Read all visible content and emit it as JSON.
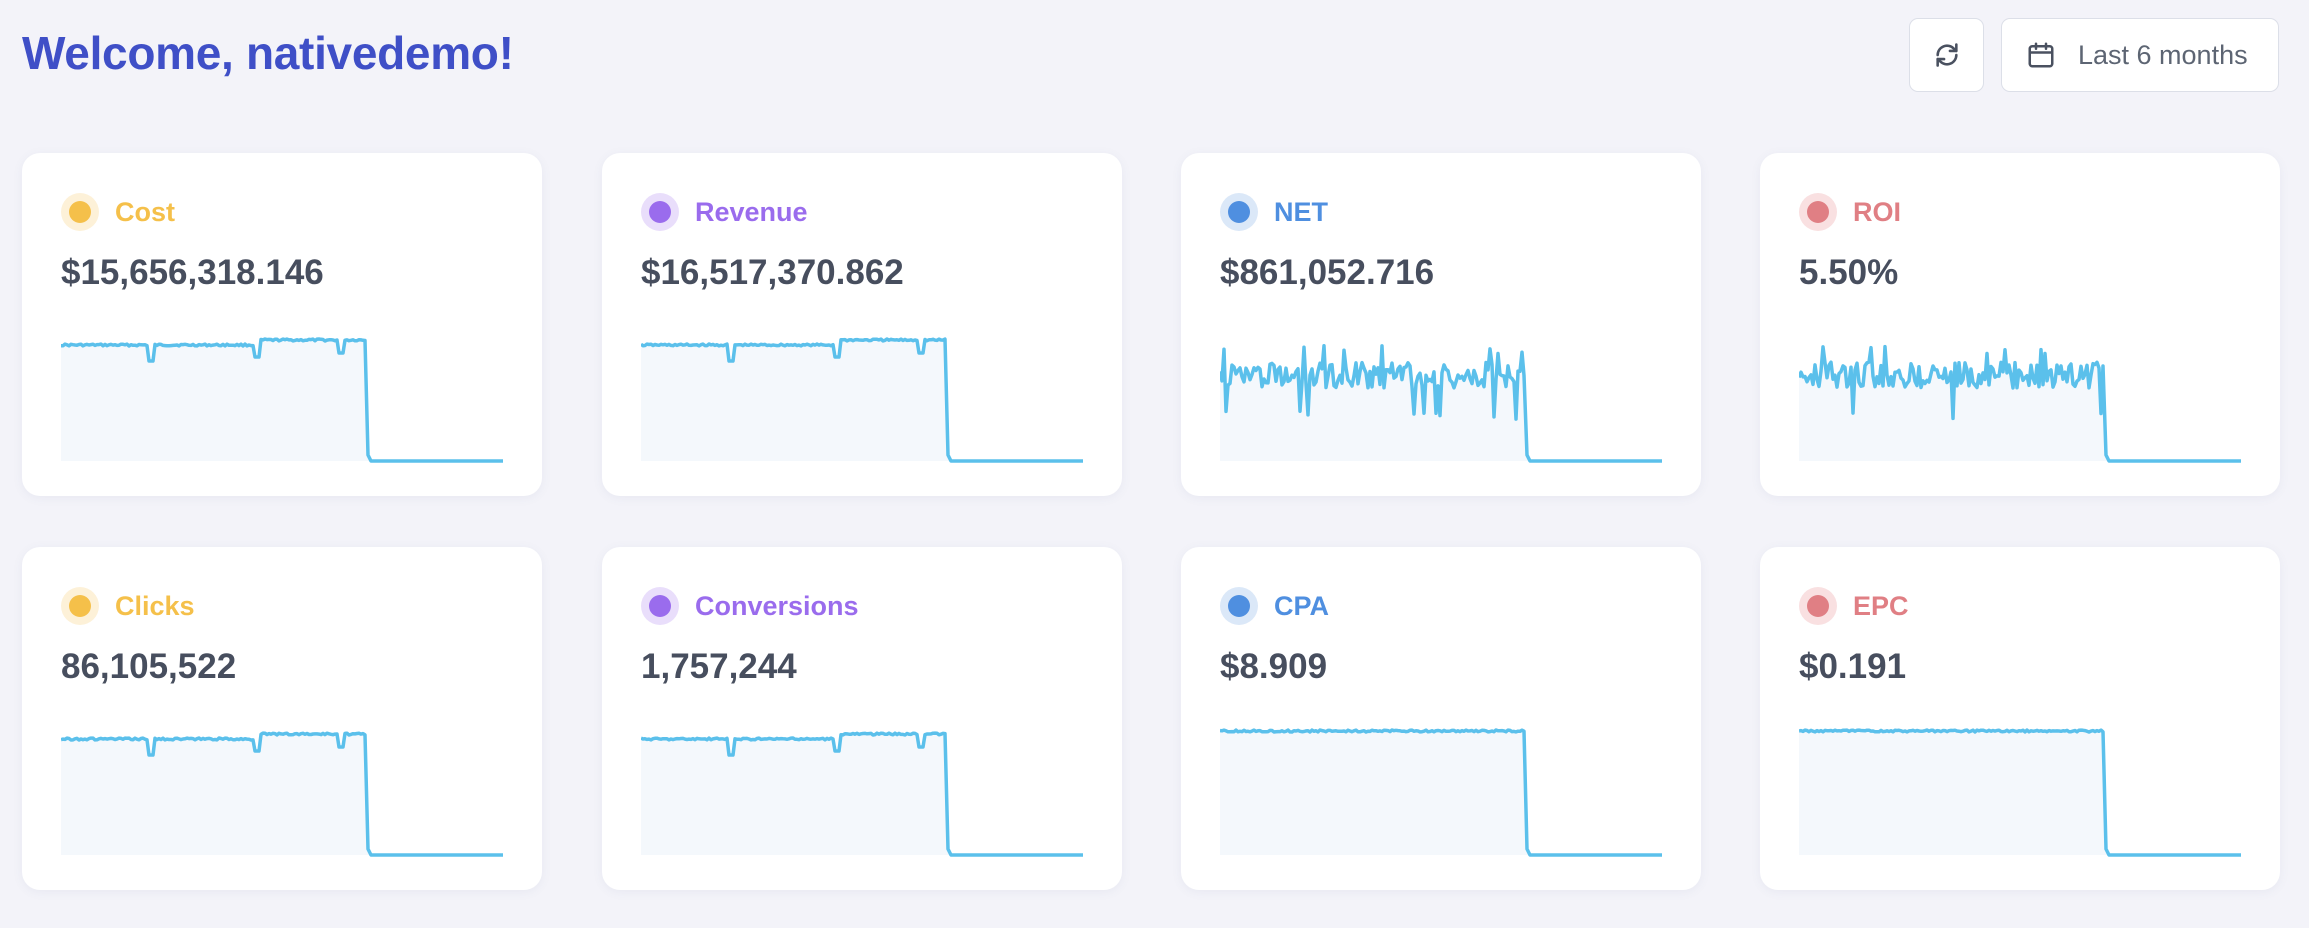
{
  "header": {
    "title": "Welcome, nativedemo!"
  },
  "toolbar": {
    "refresh_icon": "refresh-icon",
    "calendar_icon": "calendar-icon",
    "date_range_label": "Last 6 months"
  },
  "cards": [
    {
      "label": "Cost",
      "value": "$15,656,318.146",
      "color": "#f5c04a",
      "halo": "#fdf1d8",
      "sparkline": "plateau"
    },
    {
      "label": "Revenue",
      "value": "$16,517,370.862",
      "color": "#9a6ced",
      "halo": "#e9defb",
      "sparkline": "plateau"
    },
    {
      "label": "NET",
      "value": "$861,052.716",
      "color": "#4f8fe0",
      "halo": "#dbe8f8",
      "sparkline": "noisy"
    },
    {
      "label": "ROI",
      "value": "5.50%",
      "color": "#e07f84",
      "halo": "#f9e0e1",
      "sparkline": "noisy"
    },
    {
      "label": "Clicks",
      "value": "86,105,522",
      "color": "#f5c04a",
      "halo": "#fdf1d8",
      "sparkline": "plateau"
    },
    {
      "label": "Conversions",
      "value": "1,757,244",
      "color": "#9a6ced",
      "halo": "#e9defb",
      "sparkline": "plateau"
    },
    {
      "label": "CPA",
      "value": "$8.909",
      "color": "#4f8fe0",
      "halo": "#dbe8f8",
      "sparkline": "flat"
    },
    {
      "label": "EPC",
      "value": "$0.191",
      "color": "#e07f84",
      "halo": "#f9e0e1",
      "sparkline": "flat"
    }
  ],
  "sparkline_color": "#5bc0eb",
  "sparkline_fill": "#f4f8fc"
}
